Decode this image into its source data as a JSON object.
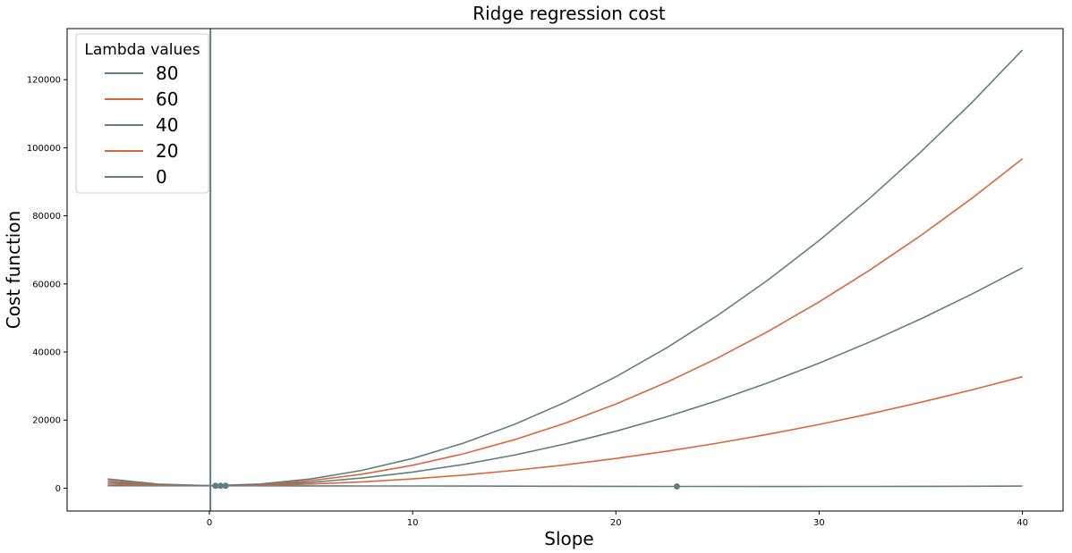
{
  "chart_data": {
    "type": "line",
    "title": "Ridge regression cost",
    "xlabel": "Slope",
    "ylabel": "Cost function",
    "xlim": [
      -7,
      42
    ],
    "ylim": [
      -6700,
      135000
    ],
    "xticks": [
      0,
      10,
      20,
      30,
      40
    ],
    "yticks": [
      0,
      20000,
      40000,
      60000,
      80000,
      100000,
      120000
    ],
    "x": [
      -5,
      -2.5,
      0,
      2.5,
      5,
      7.5,
      10,
      12.5,
      15,
      17.5,
      20,
      22.5,
      25,
      27.5,
      30,
      32.5,
      35,
      37.5,
      40
    ],
    "legend": {
      "title": "Lambda values",
      "position": "upper-left"
    },
    "series": [
      {
        "name": "80",
        "color": "#5f7f7f",
        "values": [
          2700,
          1200,
          730,
          1230,
          2730,
          5230,
          8730,
          13230,
          18730,
          25230,
          32730,
          41230,
          50730,
          61230,
          72730,
          85230,
          98730,
          113230,
          128730
        ]
      },
      {
        "name": "60",
        "color": "#d9673b",
        "values": [
          2200,
          1080,
          730,
          1080,
          2230,
          4100,
          6730,
          10100,
          14230,
          19100,
          24730,
          31100,
          38230,
          46100,
          54730,
          64100,
          74230,
          85100,
          96730
        ]
      },
      {
        "name": "40",
        "color": "#5f7f7f",
        "values": [
          1700,
          950,
          730,
          950,
          1730,
          2980,
          4730,
          6980,
          9730,
          12980,
          16730,
          20980,
          25730,
          30980,
          36730,
          42980,
          49730,
          56980,
          64730
        ]
      },
      {
        "name": "20",
        "color": "#d9673b",
        "values": [
          1200,
          830,
          730,
          830,
          1230,
          1850,
          2730,
          3850,
          5230,
          6850,
          8730,
          10850,
          13230,
          15850,
          18730,
          21850,
          25230,
          28850,
          32730
        ]
      },
      {
        "name": "0",
        "color": "#5f7f7f",
        "values": [
          720,
          710,
          700,
          690,
          680,
          660,
          640,
          610,
          590,
          560,
          540,
          520,
          510,
          500,
          510,
          520,
          540,
          570,
          610
        ]
      }
    ],
    "vline": {
      "x": 0.05,
      "color": "#5f7f7f"
    },
    "markers": [
      {
        "x": 0.3,
        "y": 700
      },
      {
        "x": 0.55,
        "y": 700
      },
      {
        "x": 0.8,
        "y": 700
      },
      {
        "x": 23,
        "y": 520
      }
    ],
    "marker_color": "#5f7f7f"
  }
}
